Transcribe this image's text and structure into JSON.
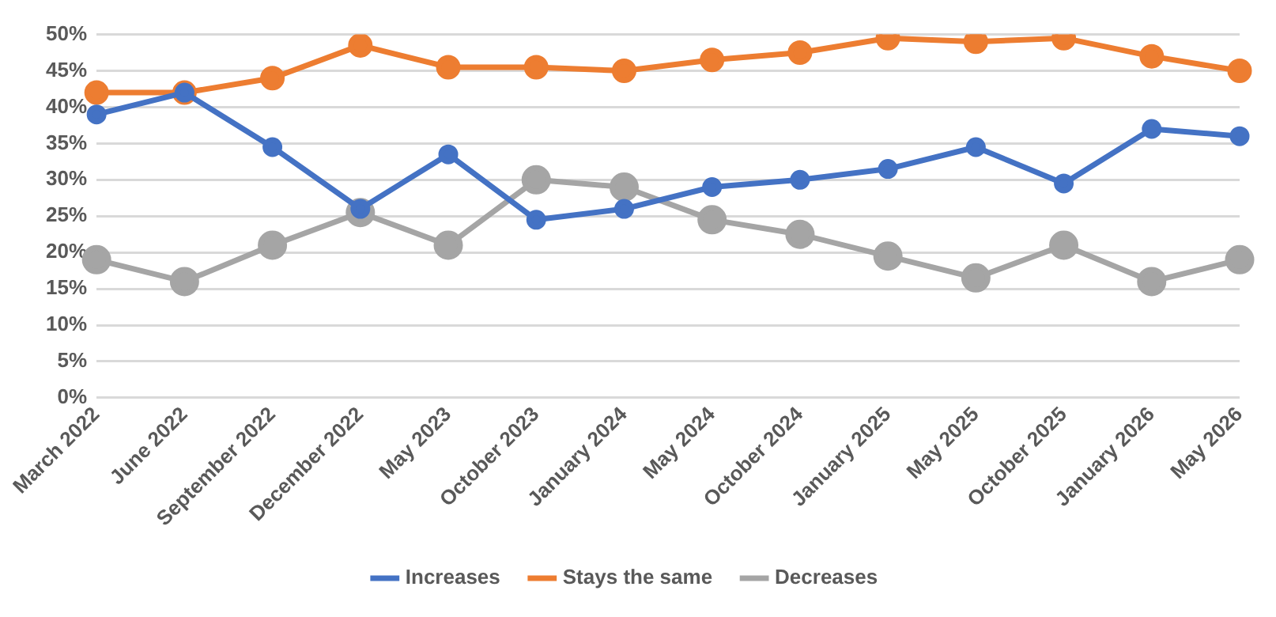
{
  "chart_data": {
    "type": "line",
    "categories": [
      "March 2022",
      "June 2022",
      "September 2022",
      "December 2022",
      "May 2023",
      "October 2023",
      "January 2024",
      "May 2024",
      "October 2024",
      "January 2025",
      "May 2025",
      "October 2025",
      "January 2026",
      "May 2026"
    ],
    "series": [
      {
        "name": "Increases",
        "color": "#4472c4",
        "values": [
          39,
          42,
          34.5,
          26,
          33.5,
          24.5,
          26,
          29,
          30,
          31.5,
          34.5,
          29.5,
          37,
          36
        ]
      },
      {
        "name": "Stays the same",
        "color": "#ed7d31",
        "values": [
          42,
          42,
          44,
          48.5,
          45.5,
          45.5,
          45,
          46.5,
          47.5,
          49.5,
          49,
          49.5,
          47,
          45
        ]
      },
      {
        "name": "Decreases",
        "color": "#a5a5a5",
        "values": [
          19,
          16,
          21,
          25.5,
          21,
          30,
          29,
          24.5,
          22.5,
          19.5,
          16.5,
          21,
          16,
          19
        ]
      }
    ],
    "ylim": [
      0,
      50
    ],
    "yticks": [
      {
        "value": 0,
        "label": "0%"
      },
      {
        "value": 5,
        "label": "5%"
      },
      {
        "value": 10,
        "label": "10%"
      },
      {
        "value": 15,
        "label": "15%"
      },
      {
        "value": 20,
        "label": "20%"
      },
      {
        "value": 25,
        "label": "25%"
      },
      {
        "value": 30,
        "label": "30%"
      },
      {
        "value": 35,
        "label": "35%"
      },
      {
        "value": 40,
        "label": "40%"
      },
      {
        "value": 45,
        "label": "45%"
      },
      {
        "value": 50,
        "label": "50%"
      }
    ],
    "grid": "y",
    "legend": "bottom",
    "marker": "circle",
    "line_style": "solid"
  }
}
